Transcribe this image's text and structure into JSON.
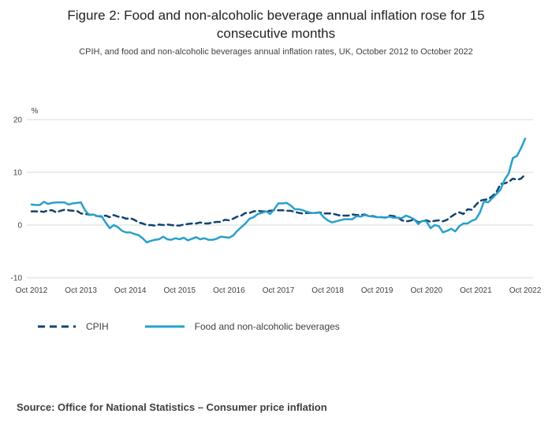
{
  "header": {
    "title": "Figure 2: Food and non-alcoholic beverage annual inflation rose for 15 consecutive months",
    "subtitle": "CPIH, and food and non-alcoholic beverages annual inflation rates, UK, October 2012 to October 2022"
  },
  "chart_data": {
    "type": "line",
    "title": "Figure 2: Food and non-alcoholic beverage annual inflation rose for 15 consecutive months",
    "ylabel": "%",
    "xlabel": "",
    "ylim": [
      -10,
      20
    ],
    "y_ticks": [
      20,
      10,
      0,
      -10
    ],
    "grid": "horizontal-only",
    "legend_position": "bottom",
    "x_unit": "month",
    "x_range": [
      "Oct 2012",
      "Oct 2022"
    ],
    "x_tick_labels": [
      "Oct 2012",
      "Oct 2013",
      "Oct 2014",
      "Oct 2015",
      "Oct 2016",
      "Oct 2017",
      "Oct 2018",
      "Oct 2019",
      "Oct 2020",
      "Oct 2021",
      "Oct 2022"
    ],
    "x_tick_every_n_points": 12,
    "grid_color": "#d9d9d9",
    "axis_text_color": "#414042",
    "series": [
      {
        "name": "CPIH",
        "style": "dashed",
        "color": "#12436D",
        "values": [
          2.6,
          2.6,
          2.6,
          2.5,
          2.8,
          2.8,
          2.4,
          2.7,
          2.9,
          2.8,
          2.7,
          2.7,
          2.2,
          2.1,
          2.0,
          1.9,
          1.7,
          1.6,
          1.8,
          1.5,
          1.9,
          1.6,
          1.5,
          1.2,
          1.3,
          1.0,
          0.5,
          0.3,
          0.0,
          0.0,
          -0.1,
          0.1,
          0.0,
          0.1,
          0.0,
          -0.1,
          -0.1,
          0.1,
          0.2,
          0.3,
          0.3,
          0.5,
          0.3,
          0.3,
          0.5,
          0.6,
          0.6,
          1.0,
          0.9,
          1.2,
          1.6,
          1.8,
          2.3,
          2.3,
          2.6,
          2.7,
          2.6,
          2.6,
          2.7,
          2.8,
          2.8,
          2.8,
          2.7,
          2.7,
          2.5,
          2.3,
          2.2,
          2.3,
          2.3,
          2.3,
          2.4,
          2.2,
          2.2,
          2.2,
          2.0,
          1.8,
          1.8,
          1.8,
          2.0,
          1.9,
          1.9,
          2.0,
          1.7,
          1.7,
          1.5,
          1.5,
          1.4,
          1.8,
          1.7,
          1.5,
          0.9,
          0.7,
          0.8,
          1.1,
          0.5,
          0.7,
          0.9,
          0.6,
          0.8,
          0.9,
          0.7,
          1.0,
          1.6,
          2.1,
          2.4,
          2.1,
          3.0,
          2.9,
          3.8,
          4.6,
          4.8,
          4.9,
          5.5,
          6.2,
          7.8,
          7.9,
          8.2,
          8.8,
          8.6,
          8.8,
          9.6
        ]
      },
      {
        "name": "Food and non-alcoholic beverages",
        "style": "solid",
        "color": "#27A0CC",
        "values": [
          3.9,
          3.8,
          3.8,
          4.4,
          4.0,
          4.2,
          4.3,
          4.3,
          4.3,
          3.9,
          4.1,
          4.2,
          4.3,
          2.8,
          1.9,
          2.0,
          1.7,
          1.7,
          0.5,
          -0.6,
          0.0,
          -0.4,
          -1.1,
          -1.4,
          -1.4,
          -1.7,
          -1.9,
          -2.5,
          -3.3,
          -3.0,
          -2.8,
          -2.7,
          -2.2,
          -2.7,
          -2.8,
          -2.5,
          -2.7,
          -2.4,
          -2.9,
          -2.6,
          -2.3,
          -2.7,
          -2.5,
          -2.8,
          -2.8,
          -2.6,
          -2.2,
          -2.3,
          -2.4,
          -2.0,
          -1.1,
          -0.4,
          0.3,
          1.2,
          1.5,
          2.1,
          2.3,
          2.6,
          2.1,
          3.0,
          4.1,
          4.1,
          4.2,
          3.7,
          3.0,
          3.0,
          2.8,
          2.5,
          2.3,
          2.3,
          2.4,
          1.5,
          0.9,
          0.5,
          0.7,
          0.9,
          1.1,
          1.1,
          1.1,
          1.7,
          1.6,
          1.9,
          1.7,
          1.6,
          1.5,
          1.5,
          1.4,
          1.6,
          1.4,
          1.4,
          1.3,
          1.8,
          1.5,
          1.1,
          0.2,
          0.8,
          0.7,
          -0.6,
          0.0,
          -0.2,
          -1.4,
          -1.1,
          -0.7,
          -1.2,
          -0.2,
          0.3,
          0.3,
          0.8,
          1.1,
          2.4,
          4.5,
          4.3,
          5.1,
          5.9,
          6.7,
          8.6,
          9.8,
          12.7,
          13.1,
          14.6,
          16.4
        ]
      }
    ]
  },
  "source": "Source: Office for National Statistics – Consumer price inflation"
}
